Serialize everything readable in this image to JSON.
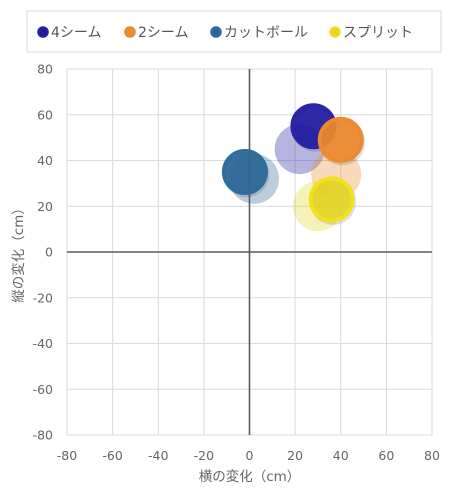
{
  "chart_data": {
    "type": "scatter",
    "xlabel": "横の変化（cm）",
    "ylabel": "縦の変化（cm）",
    "xlim": [
      -80,
      80
    ],
    "ylim": [
      -80,
      80
    ],
    "xticks": [
      -80,
      -60,
      -40,
      -20,
      0,
      20,
      40,
      60,
      80
    ],
    "yticks": [
      -80,
      -60,
      -40,
      -20,
      0,
      20,
      40,
      60,
      80
    ],
    "grid": true,
    "legend_position": "top",
    "series": [
      {
        "name": "4シーム",
        "color": "#2b22a6",
        "fill": "#1f1aa0",
        "points": [
          {
            "x": 22,
            "y": 45,
            "style": "faded"
          },
          {
            "x": 28,
            "y": 55,
            "style": "solid"
          }
        ]
      },
      {
        "name": "2シーム",
        "color": "#ed8a2e",
        "fill": "#ec8a2c",
        "points": [
          {
            "x": 38,
            "y": 34,
            "style": "faded"
          },
          {
            "x": 40,
            "y": 49,
            "style": "solid"
          }
        ]
      },
      {
        "name": "カットボール",
        "color": "#2f6d9c",
        "fill": "#2b6594",
        "points": [
          {
            "x": 2,
            "y": 32,
            "style": "faded"
          },
          {
            "x": -2,
            "y": 35,
            "style": "solid"
          }
        ]
      },
      {
        "name": "スプリット",
        "color": "#f0e21c",
        "fill": "#e4d526",
        "points": [
          {
            "x": 30,
            "y": 20,
            "style": "faded"
          },
          {
            "x": 36,
            "y": 23,
            "style": "solid"
          }
        ]
      }
    ]
  }
}
